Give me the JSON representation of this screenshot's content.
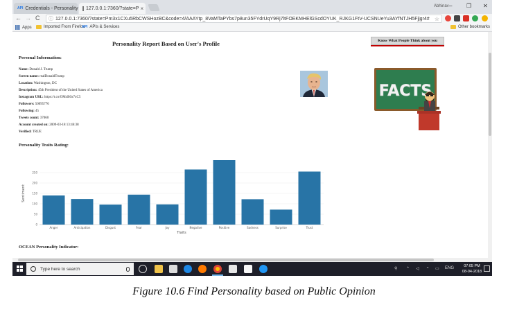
{
  "browser": {
    "tabs": [
      {
        "favicon": "API",
        "title": "Credentials - Personality",
        "close": "×"
      },
      {
        "title": "127.0.0.1:7360/?state=P",
        "close": "×"
      }
    ],
    "window_user": "Abhinav",
    "window_controls": {
      "minimize": "–",
      "maximize": "❐",
      "close": "✕"
    },
    "url": "127.0.0.1:7360/?state=Pm3x1CXu5RbCWSHozBC&code=4/AAAYtp_8VaMTaPYbs7p8un35FYdrUqY9Rj7ltFOEKMHElGScdOYUK_RJKG1FtV-UCSNUeYu3AYfNTJH5Fjjgr4#",
    "nav": {
      "back": "←",
      "forward": "→",
      "reload": "C"
    },
    "star": "☆",
    "bookmarks": [
      {
        "label": "Apps"
      },
      {
        "label": "Imported From Firefox"
      },
      {
        "favicon": "API",
        "label": "APIs & Services"
      }
    ],
    "other_bookmarks": "Other bookmarks"
  },
  "page": {
    "title": "Personality Report Based on User's Profile",
    "know_button": "Know What People Think about you",
    "personal_heading": "Personal Information:",
    "info": [
      {
        "label": "Name:",
        "value": "Donald J. Trump"
      },
      {
        "label": "Screen name:",
        "value": "realDonaldTrump"
      },
      {
        "label": "Location:",
        "value": "Washington, DC"
      },
      {
        "label": "Description:",
        "value": "45th President of the United States of America"
      },
      {
        "label": "Instagram URL:",
        "value": "https://t.co/OMxB0x7xC5"
      },
      {
        "label": "Followers:",
        "value": "50095776"
      },
      {
        "label": "Following:",
        "value": "45"
      },
      {
        "label": "Tweets count:",
        "value": "37060"
      },
      {
        "label": "Account created on:",
        "value": "2009-03-18 13:46:38"
      },
      {
        "label": "Verified:",
        "value": "TRUE"
      }
    ],
    "facts_text": "FACTS",
    "traits_heading": "Personality Traits Rating:",
    "ocean_heading": "OCEAN Personality Indicator:"
  },
  "chart_data": {
    "type": "bar",
    "title": "",
    "xlabel": "Traits",
    "ylabel": "Sentiment",
    "categories": [
      "Anger",
      "Anticipation",
      "Disgust",
      "Fear",
      "Joy",
      "Negative",
      "Positive",
      "Sadness",
      "Surprise",
      "Trust"
    ],
    "values": [
      140,
      123,
      96,
      144,
      97,
      265,
      310,
      122,
      72,
      255
    ],
    "ylim": [
      0,
      300
    ],
    "yticks": [
      0,
      50,
      100,
      150,
      200,
      250
    ],
    "grid": true,
    "bar_color": "#2874a6"
  },
  "taskbar": {
    "search_placeholder": "Type here to search",
    "tray_lang": "ENG",
    "time": "07:05 PM",
    "date": "08-04-2018"
  },
  "caption": "Figure 10.6 Find Personality based on Public Opinion"
}
